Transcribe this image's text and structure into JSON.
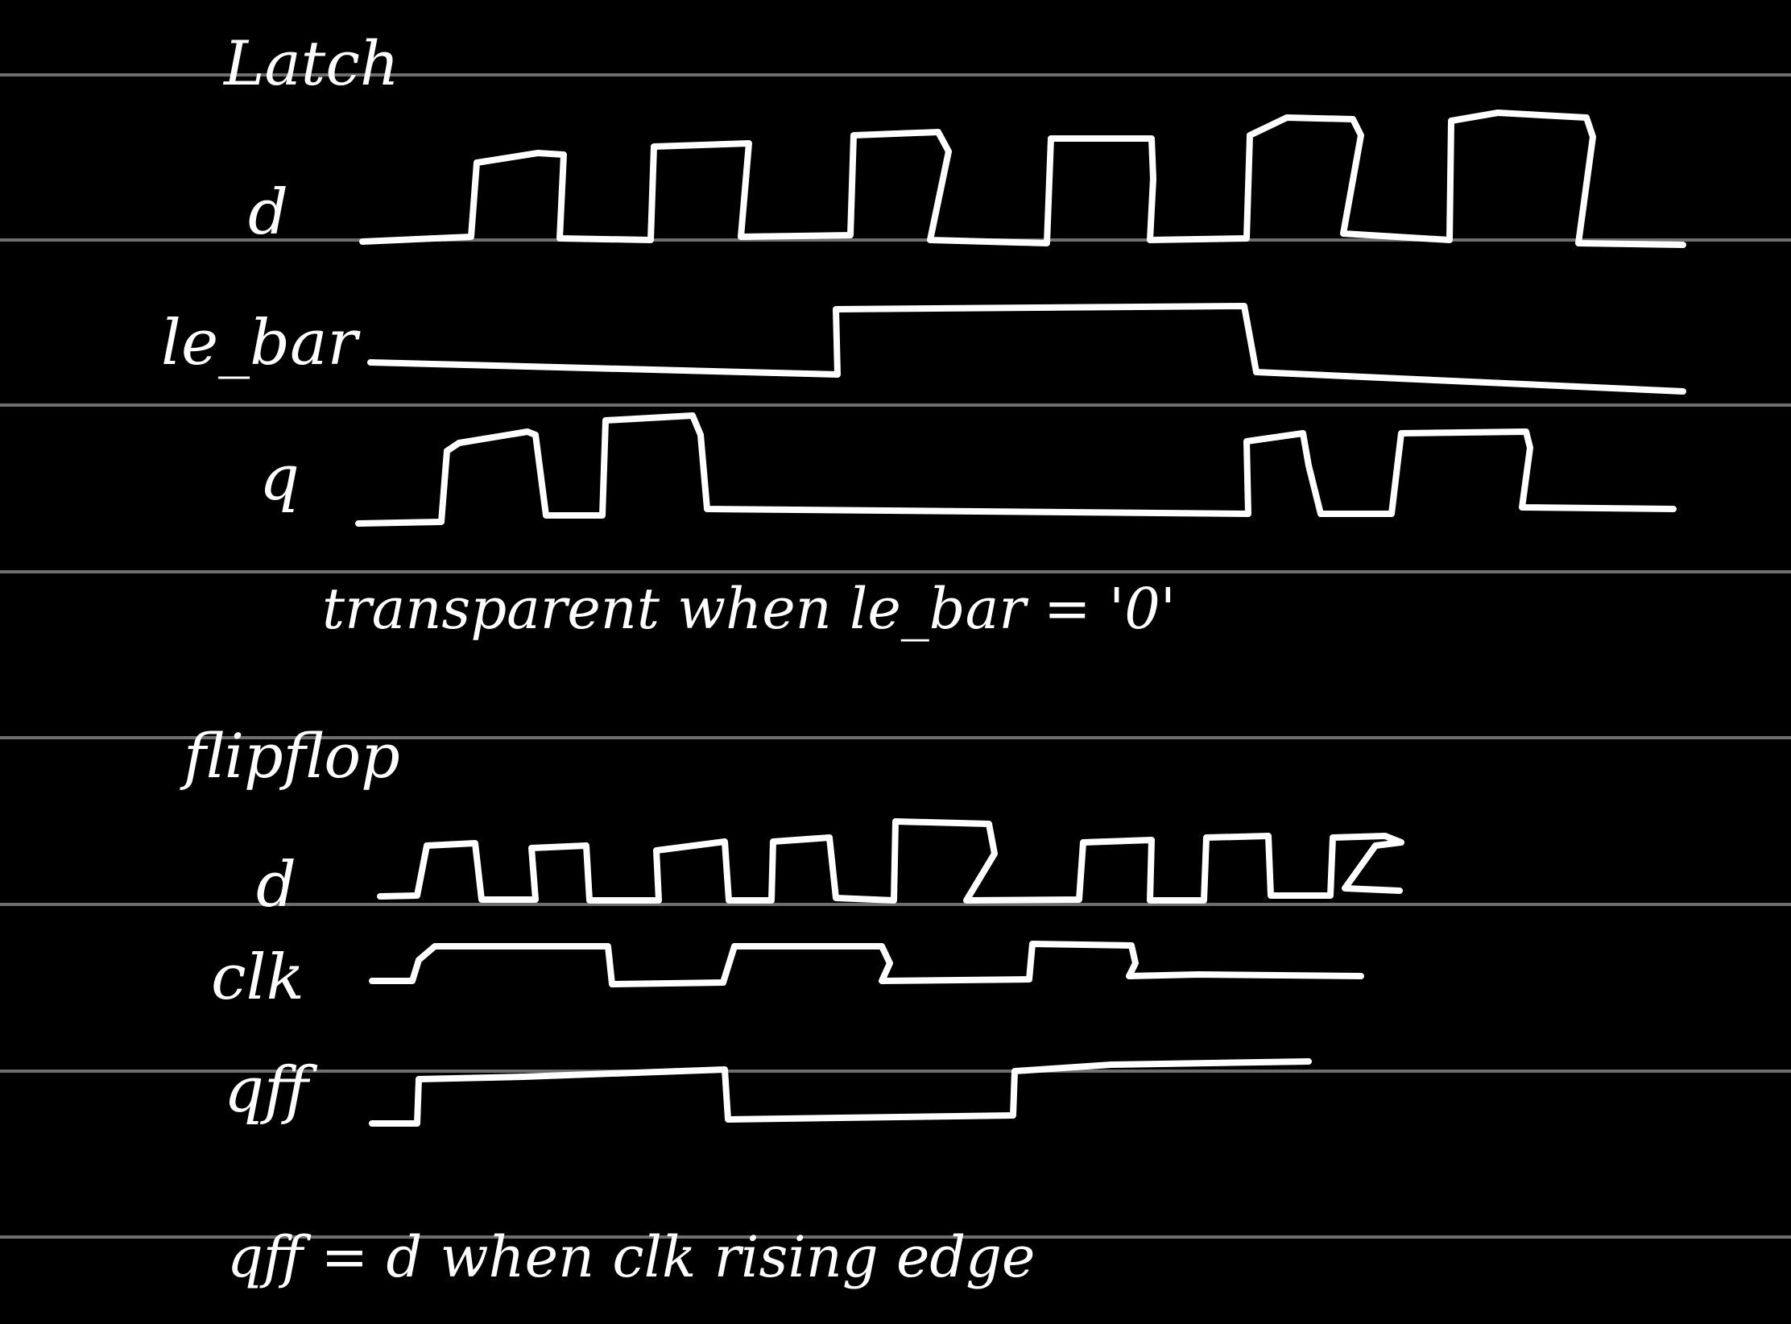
{
  "latch": {
    "title": "Latch",
    "signals": {
      "d": {
        "label": "d"
      },
      "le_bar": {
        "label": "le_bar"
      },
      "q": {
        "label": "q"
      }
    },
    "note": "transparent when le_bar = '0'"
  },
  "flipflop": {
    "title": "flipflop",
    "signals": {
      "d": {
        "label": "d"
      },
      "clk": {
        "label": "clk"
      },
      "qff": {
        "label": "qff"
      }
    },
    "note": "qff = d when clk rising edge"
  },
  "colors": {
    "background": "#000000",
    "ink": "#ffffff",
    "ruled_line": "#6e6e6e"
  }
}
